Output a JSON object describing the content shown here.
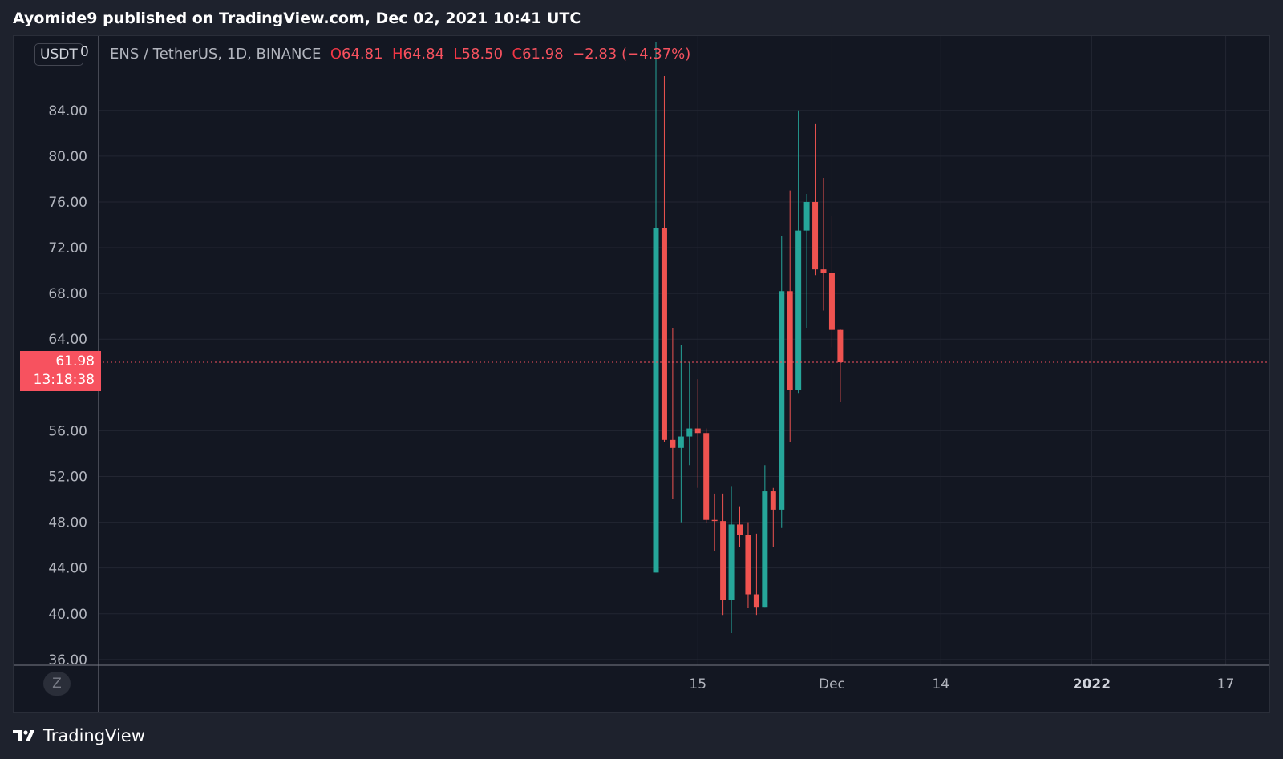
{
  "header": {
    "text": "Ayomide9 published on TradingView.com, Dec 02, 2021 10:41 UTC"
  },
  "axis": {
    "unit": "USDT",
    "unit_suffix": "0",
    "price_label": "61.98",
    "countdown": "13:18:38",
    "z_button": "Z"
  },
  "legend": {
    "symbol": "ENS / TetherUS, 1D, BINANCE",
    "o_label": "O",
    "o_value": "64.81",
    "h_label": "H",
    "h_value": "64.84",
    "l_label": "L",
    "l_value": "58.50",
    "c_label": "C",
    "c_value": "61.98",
    "change": "−2.83 (−4.37%)"
  },
  "colors": {
    "up": "#26a69a",
    "down": "#ef5350",
    "background": "#131722",
    "grid": "#232632",
    "price_line": "#f7525f"
  },
  "footer": {
    "brand": "TradingView",
    "logo_icon": "tradingview-logo-icon"
  },
  "chart_data": {
    "type": "candlestick",
    "title": "ENS / TetherUS, 1D, BINANCE",
    "ylim": [
      35.5,
      90.5
    ],
    "y_ticks": [
      "84.00",
      "80.00",
      "76.00",
      "72.00",
      "68.00",
      "64.00",
      "56.00",
      "52.00",
      "48.00",
      "44.00",
      "40.00",
      "36.00"
    ],
    "y_tick_values": [
      84,
      80,
      76,
      72,
      68,
      64,
      56,
      52,
      48,
      44,
      40,
      36
    ],
    "x_tick_labels": [
      {
        "label": "15",
        "index": 5
      },
      {
        "label": "Dec",
        "index": 21
      },
      {
        "label": "14",
        "index": 34
      },
      {
        "label": "2022",
        "index": 52
      },
      {
        "label": "17",
        "index": 68
      }
    ],
    "last_price": 61.98,
    "candles": [
      {
        "date": "2021-11-10",
        "o": 43.6,
        "h": 90.0,
        "l": 43.6,
        "c": 73.7
      },
      {
        "date": "2021-11-11",
        "o": 73.7,
        "h": 87.0,
        "l": 55.0,
        "c": 55.2
      },
      {
        "date": "2021-11-12",
        "o": 55.2,
        "h": 65.0,
        "l": 50.0,
        "c": 54.5
      },
      {
        "date": "2021-11-13",
        "o": 54.5,
        "h": 63.5,
        "l": 48.0,
        "c": 55.5
      },
      {
        "date": "2021-11-14",
        "o": 55.5,
        "h": 62.0,
        "l": 53.0,
        "c": 56.2
      },
      {
        "date": "2021-11-15",
        "o": 56.2,
        "h": 60.5,
        "l": 51.0,
        "c": 55.8
      },
      {
        "date": "2021-11-16",
        "o": 55.8,
        "h": 56.2,
        "l": 47.9,
        "c": 48.2
      },
      {
        "date": "2021-11-17",
        "o": 48.2,
        "h": 50.5,
        "l": 45.5,
        "c": 48.1
      },
      {
        "date": "2021-11-18",
        "o": 48.1,
        "h": 50.5,
        "l": 39.9,
        "c": 41.2
      },
      {
        "date": "2021-11-19",
        "o": 41.2,
        "h": 51.1,
        "l": 38.3,
        "c": 47.8
      },
      {
        "date": "2021-11-20",
        "o": 47.8,
        "h": 49.4,
        "l": 45.8,
        "c": 46.9
      },
      {
        "date": "2021-11-21",
        "o": 46.9,
        "h": 48.0,
        "l": 40.5,
        "c": 41.7
      },
      {
        "date": "2021-11-22",
        "o": 41.7,
        "h": 47.0,
        "l": 39.9,
        "c": 40.6
      },
      {
        "date": "2021-11-23",
        "o": 40.6,
        "h": 53.0,
        "l": 40.6,
        "c": 50.7
      },
      {
        "date": "2021-11-24",
        "o": 50.7,
        "h": 51.0,
        "l": 45.8,
        "c": 49.1
      },
      {
        "date": "2021-11-25",
        "o": 49.1,
        "h": 73.0,
        "l": 47.5,
        "c": 68.2
      },
      {
        "date": "2021-11-26",
        "o": 68.2,
        "h": 77.0,
        "l": 55.0,
        "c": 59.6
      },
      {
        "date": "2021-11-27",
        "o": 59.6,
        "h": 84.0,
        "l": 59.3,
        "c": 73.5
      },
      {
        "date": "2021-11-28",
        "o": 73.5,
        "h": 76.7,
        "l": 65.0,
        "c": 76.0
      },
      {
        "date": "2021-11-29",
        "o": 76.0,
        "h": 82.8,
        "l": 69.6,
        "c": 70.1
      },
      {
        "date": "2021-11-30",
        "o": 70.1,
        "h": 78.1,
        "l": 66.5,
        "c": 69.8
      },
      {
        "date": "2021-12-01",
        "o": 69.8,
        "h": 74.8,
        "l": 63.3,
        "c": 64.81
      },
      {
        "date": "2021-12-02",
        "o": 64.81,
        "h": 64.84,
        "l": 58.5,
        "c": 61.98
      }
    ]
  }
}
